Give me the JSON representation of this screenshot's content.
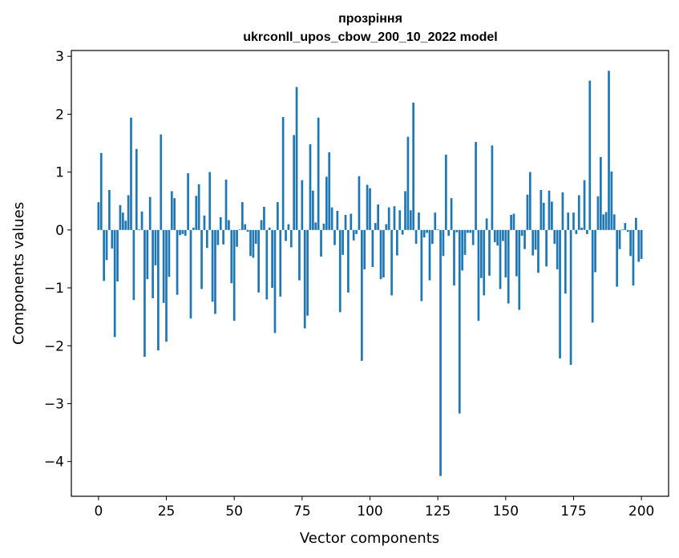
{
  "chart_data": {
    "type": "bar",
    "title_line1": "прозріння",
    "title_line2": "ukrconll_upos_cbow_200_10_2022 model",
    "xlabel": "Vector components",
    "ylabel": "Components values",
    "xlim": [
      -10,
      210
    ],
    "ylim": [
      -4.6,
      3.1
    ],
    "xticks": [
      0,
      25,
      50,
      75,
      100,
      125,
      150,
      175,
      200
    ],
    "yticks": [
      3,
      2,
      1,
      0,
      -1,
      -2,
      -3,
      -4
    ],
    "ytick_labels": [
      "3",
      "2",
      "1",
      "0",
      "−1",
      "−2",
      "−3",
      "−4"
    ],
    "bar_color": "#1f77b4",
    "grid": false,
    "values": [
      0.48,
      1.33,
      -0.88,
      -0.52,
      0.69,
      -0.32,
      -1.85,
      -0.89,
      0.43,
      0.3,
      0.16,
      0.6,
      1.94,
      -1.21,
      1.4,
      0.01,
      0.32,
      -2.19,
      -0.85,
      0.57,
      -1.18,
      -0.61,
      -2.08,
      1.65,
      -1.26,
      -1.93,
      -0.81,
      0.67,
      0.55,
      -1.12,
      -0.09,
      -0.07,
      -0.1,
      0.98,
      -1.53,
      0.04,
      0.59,
      0.79,
      -1.02,
      0.25,
      -0.31,
      1.0,
      -1.24,
      -1.45,
      -0.26,
      0.22,
      -0.25,
      0.87,
      0.17,
      -0.92,
      -1.57,
      -0.29,
      0.01,
      0.48,
      0.1,
      -0.03,
      -0.45,
      -0.48,
      -0.24,
      -1.08,
      0.17,
      0.4,
      -1.2,
      0.04,
      -1.0,
      -1.78,
      0.48,
      -1.15,
      1.95,
      -0.19,
      0.1,
      -0.3,
      1.64,
      2.47,
      -0.87,
      0.86,
      -1.7,
      -1.48,
      1.48,
      0.68,
      0.13,
      1.94,
      -0.46,
      0.11,
      0.92,
      1.34,
      0.39,
      -0.26,
      0.33,
      -1.42,
      -0.43,
      0.26,
      -1.08,
      0.28,
      -0.18,
      -0.07,
      0.93,
      -2.26,
      -0.68,
      0.78,
      0.72,
      -0.64,
      0.12,
      0.44,
      -0.85,
      -0.82,
      0.1,
      0.39,
      -1.13,
      0.41,
      -0.44,
      0.34,
      -0.08,
      0.67,
      1.61,
      0.34,
      2.2,
      -0.24,
      0.3,
      -1.23,
      -0.13,
      -0.05,
      -0.87,
      -0.24,
      0.3,
      0.01,
      -4.25,
      -0.45,
      1.3,
      -0.1,
      0.55,
      -0.96,
      -0.04,
      -3.17,
      -0.7,
      -0.43,
      -0.05,
      -0.05,
      -0.26,
      1.52,
      -1.57,
      -0.83,
      -1.13,
      0.2,
      -0.79,
      1.46,
      -0.21,
      -0.27,
      -1.02,
      -0.19,
      -0.82,
      -1.27,
      0.26,
      0.28,
      -0.8,
      -1.38,
      -0.1,
      -0.33,
      0.61,
      1.0,
      -0.44,
      -0.34,
      -0.74,
      0.69,
      0.47,
      -0.63,
      0.68,
      0.49,
      -0.24,
      -0.68,
      -2.22,
      0.65,
      -1.1,
      0.3,
      -2.33,
      0.3,
      -0.07,
      0.6,
      0.04,
      0.86,
      -0.07,
      2.58,
      -1.6,
      -0.73,
      0.58,
      1.26,
      0.27,
      0.31,
      2.75,
      1.01,
      0.27,
      -0.98,
      -0.33,
      0.01,
      0.12,
      -0.03,
      -0.45,
      -0.96,
      0.21,
      -0.55,
      -0.5
    ]
  }
}
